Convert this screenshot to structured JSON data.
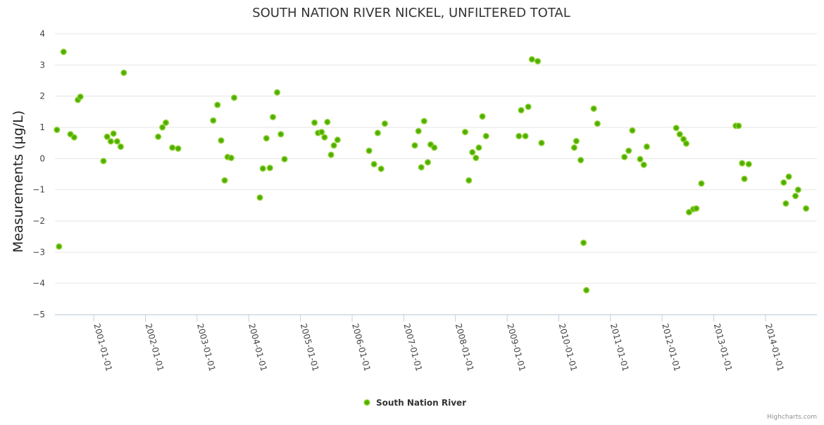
{
  "chart_data": {
    "type": "scatter",
    "title": "SOUTH NATION RIVER NICKEL, UNFILTERED TOTAL",
    "xlabel": "",
    "ylabel": "Measurements (µg/L)",
    "ylim": [
      -5,
      4
    ],
    "yticks": [
      "−5",
      "−4",
      "−3",
      "−2",
      "−1",
      "0",
      "1",
      "2",
      "3",
      "4"
    ],
    "xlim": [
      "2000-04-01",
      "2014-12-31"
    ],
    "xticks": [
      "2001-01-01",
      "2002-01-01",
      "2003-01-01",
      "2004-01-01",
      "2005-01-01",
      "2006-01-01",
      "2007-01-01",
      "2008-01-01",
      "2009-01-01",
      "2010-01-01",
      "2011-01-01",
      "2012-01-01",
      "2013-01-01",
      "2014-01-01"
    ],
    "grid": true,
    "legend_position": "bottom-center",
    "marker_color": "#7cb5ec",
    "marker_fill": "#4caf00",
    "marker_stroke": "#8fcf30",
    "series": [
      {
        "name": "South Nation River",
        "points": [
          [
            "2000-04-15",
            0.92
          ],
          [
            "2000-04-30",
            -2.82
          ],
          [
            "2000-06-01",
            3.42
          ],
          [
            "2000-07-20",
            0.78
          ],
          [
            "2000-08-15",
            0.68
          ],
          [
            "2000-09-10",
            1.88
          ],
          [
            "2000-09-28",
            1.98
          ],
          [
            "2001-03-10",
            -0.08
          ],
          [
            "2001-04-05",
            0.7
          ],
          [
            "2001-05-01",
            0.55
          ],
          [
            "2001-05-20",
            0.8
          ],
          [
            "2001-06-15",
            0.55
          ],
          [
            "2001-07-10",
            0.38
          ],
          [
            "2001-08-01",
            2.75
          ],
          [
            "2002-04-01",
            0.7
          ],
          [
            "2002-05-01",
            1.0
          ],
          [
            "2002-05-25",
            1.15
          ],
          [
            "2002-07-10",
            0.35
          ],
          [
            "2002-08-20",
            0.32
          ],
          [
            "2003-04-25",
            1.22
          ],
          [
            "2003-05-25",
            1.72
          ],
          [
            "2003-06-20",
            0.58
          ],
          [
            "2003-07-15",
            -0.7
          ],
          [
            "2003-08-05",
            0.05
          ],
          [
            "2003-08-30",
            0.02
          ],
          [
            "2003-09-20",
            1.95
          ],
          [
            "2004-03-20",
            -1.25
          ],
          [
            "2004-04-10",
            -0.32
          ],
          [
            "2004-05-05",
            0.65
          ],
          [
            "2004-05-30",
            -0.3
          ],
          [
            "2004-06-20",
            1.33
          ],
          [
            "2004-07-20",
            2.12
          ],
          [
            "2004-08-15",
            0.78
          ],
          [
            "2004-09-10",
            -0.02
          ],
          [
            "2005-04-10",
            1.15
          ],
          [
            "2005-05-05",
            0.82
          ],
          [
            "2005-05-30",
            0.85
          ],
          [
            "2005-06-20",
            0.68
          ],
          [
            "2005-07-10",
            1.17
          ],
          [
            "2005-08-05",
            0.12
          ],
          [
            "2005-08-25",
            0.42
          ],
          [
            "2005-09-20",
            0.6
          ],
          [
            "2006-05-01",
            0.25
          ],
          [
            "2006-06-05",
            -0.18
          ],
          [
            "2006-07-01",
            0.82
          ],
          [
            "2006-07-25",
            -0.33
          ],
          [
            "2006-08-20",
            1.12
          ],
          [
            "2007-03-20",
            0.42
          ],
          [
            "2007-04-15",
            0.88
          ],
          [
            "2007-05-05",
            -0.28
          ],
          [
            "2007-05-25",
            1.2
          ],
          [
            "2007-06-20",
            -0.12
          ],
          [
            "2007-07-10",
            0.45
          ],
          [
            "2007-08-05",
            0.35
          ],
          [
            "2008-03-10",
            0.85
          ],
          [
            "2008-04-05",
            -0.7
          ],
          [
            "2008-04-30",
            0.2
          ],
          [
            "2008-05-25",
            0.02
          ],
          [
            "2008-06-15",
            0.35
          ],
          [
            "2008-07-10",
            1.35
          ],
          [
            "2008-08-05",
            0.72
          ],
          [
            "2009-03-25",
            0.72
          ],
          [
            "2009-04-10",
            1.55
          ],
          [
            "2009-05-10",
            0.72
          ],
          [
            "2009-05-30",
            1.66
          ],
          [
            "2009-06-25",
            3.18
          ],
          [
            "2009-08-05",
            3.12
          ],
          [
            "2009-09-01",
            0.5
          ],
          [
            "2010-04-20",
            0.35
          ],
          [
            "2010-05-05",
            0.56
          ],
          [
            "2010-06-05",
            -0.05
          ],
          [
            "2010-06-25",
            -2.7
          ],
          [
            "2010-07-15",
            -4.22
          ],
          [
            "2010-09-05",
            1.6
          ],
          [
            "2010-10-01",
            1.12
          ],
          [
            "2011-04-10",
            0.05
          ],
          [
            "2011-05-10",
            0.25
          ],
          [
            "2011-06-05",
            0.9
          ],
          [
            "2011-07-30",
            -0.02
          ],
          [
            "2011-08-25",
            -0.2
          ],
          [
            "2011-09-15",
            0.38
          ],
          [
            "2012-04-10",
            0.98
          ],
          [
            "2012-05-05",
            0.78
          ],
          [
            "2012-06-01",
            0.62
          ],
          [
            "2012-06-20",
            0.48
          ],
          [
            "2012-07-10",
            -1.72
          ],
          [
            "2012-08-10",
            -1.62
          ],
          [
            "2012-08-30",
            -1.6
          ],
          [
            "2012-10-05",
            -0.8
          ],
          [
            "2013-06-05",
            1.05
          ],
          [
            "2013-06-25",
            1.05
          ],
          [
            "2013-07-20",
            -0.15
          ],
          [
            "2013-08-05",
            -0.65
          ],
          [
            "2013-09-05",
            -0.18
          ],
          [
            "2014-05-10",
            -0.77
          ],
          [
            "2014-05-25",
            -1.44
          ],
          [
            "2014-06-15",
            -0.58
          ],
          [
            "2014-08-01",
            -1.2
          ],
          [
            "2014-08-20",
            -1.0
          ],
          [
            "2014-10-15",
            -1.6
          ]
        ]
      }
    ]
  },
  "credits": "Highcharts.com"
}
